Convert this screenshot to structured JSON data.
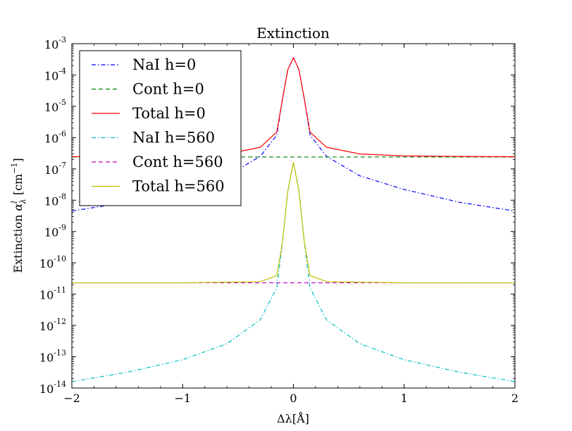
{
  "chart_data": {
    "type": "line",
    "title": "Extinction",
    "xlabel": "Δλ[Å]",
    "ylabel_main": "Extinction",
    "ylabel_symbol": "α",
    "ylabel_sup": "l",
    "ylabel_sub": "λ",
    "ylabel_unit": "[cm",
    "ylabel_unit_sup": "−1",
    "ylabel_unit_close": "]",
    "xlim": [
      -2,
      2
    ],
    "ylim_log10": [
      -14,
      -3
    ],
    "yscale": "log",
    "grid": false,
    "legend_position": "upper-left",
    "x_ticks": [
      {
        "value": -2,
        "label": "−2"
      },
      {
        "value": -1,
        "label": "−1"
      },
      {
        "value": 0,
        "label": "0"
      },
      {
        "value": 1,
        "label": "1"
      },
      {
        "value": 2,
        "label": "2"
      }
    ],
    "y_ticks": [
      {
        "exp": -3,
        "base": "10",
        "sup": "-3"
      },
      {
        "exp": -4,
        "base": "10",
        "sup": "-4"
      },
      {
        "exp": -5,
        "base": "10",
        "sup": "-5"
      },
      {
        "exp": -6,
        "base": "10",
        "sup": "-6"
      },
      {
        "exp": -7,
        "base": "10",
        "sup": "-7"
      },
      {
        "exp": -8,
        "base": "10",
        "sup": "-8"
      },
      {
        "exp": -9,
        "base": "10",
        "sup": "-9"
      },
      {
        "exp": -10,
        "base": "10",
        "sup": "-10"
      },
      {
        "exp": -11,
        "base": "10",
        "sup": "-11"
      },
      {
        "exp": -12,
        "base": "10",
        "sup": "-12"
      },
      {
        "exp": -13,
        "base": "10",
        "sup": "-13"
      },
      {
        "exp": -14,
        "base": "10",
        "sup": "-14"
      }
    ],
    "series": [
      {
        "name": "NaI h=0",
        "color": "#0000ff",
        "dash": "dashdot",
        "x": [
          -2,
          -1.5,
          -1.0,
          -0.6,
          -0.3,
          -0.15,
          -0.1,
          -0.05,
          0,
          0.05,
          0.1,
          0.15,
          0.3,
          0.6,
          1.0,
          1.5,
          2
        ],
        "y": [
          4.5e-09,
          8.6e-09,
          2.2e-08,
          6e-08,
          2.5e-07,
          1.2e-06,
          1.6e-05,
          0.00015,
          0.00036,
          0.00015,
          1.6e-05,
          1.2e-06,
          2.5e-07,
          6e-08,
          2.2e-08,
          8.6e-09,
          4.5e-09
        ]
      },
      {
        "name": "Cont h=0",
        "color": "#008000",
        "dash": "dashed",
        "x": [
          -2,
          2
        ],
        "y": [
          2.4e-07,
          2.4e-07
        ]
      },
      {
        "name": "Total h=0",
        "color": "#ff0000",
        "dash": "solid",
        "x": [
          -2,
          -1.5,
          -1.0,
          -0.6,
          -0.3,
          -0.15,
          -0.1,
          -0.05,
          0,
          0.05,
          0.1,
          0.15,
          0.3,
          0.6,
          1.0,
          1.5,
          2
        ],
        "y": [
          2.45e-07,
          2.5e-07,
          2.6e-07,
          3e-07,
          4.9e-07,
          1.5e-06,
          1.6e-05,
          0.00015,
          0.00036,
          0.00015,
          1.6e-05,
          1.5e-06,
          4.9e-07,
          3e-07,
          2.6e-07,
          2.5e-07,
          2.45e-07
        ]
      },
      {
        "name": "NaI h=560",
        "color": "#00bfbf",
        "dash": "dashdot",
        "x": [
          -2,
          -1.5,
          -1.0,
          -0.6,
          -0.3,
          -0.15,
          -0.1,
          -0.05,
          0,
          0.05,
          0.1,
          0.15,
          0.3,
          0.6,
          1.0,
          1.5,
          2
        ],
        "y": [
          1.6e-14,
          3.2e-14,
          8e-14,
          2.6e-13,
          1.5e-12,
          1.6e-11,
          4e-10,
          2e-08,
          1.6e-07,
          2e-08,
          4e-10,
          1.6e-11,
          1.5e-12,
          2.6e-13,
          8e-14,
          3.2e-14,
          1.6e-14
        ]
      },
      {
        "name": "Cont h=560",
        "color": "#bf00bf",
        "dash": "dashed",
        "x": [
          -2,
          2
        ],
        "y": [
          2.3e-11,
          2.3e-11
        ]
      },
      {
        "name": "Total h=560",
        "color": "#bfbf00",
        "dash": "solid",
        "x": [
          -2,
          -1.0,
          -0.3,
          -0.15,
          -0.1,
          -0.05,
          0,
          0.05,
          0.1,
          0.15,
          0.3,
          1.0,
          2
        ],
        "y": [
          2.3e-11,
          2.3e-11,
          2.5e-11,
          3.9e-11,
          4.2e-10,
          2e-08,
          1.6e-07,
          2e-08,
          4.2e-10,
          3.9e-11,
          2.5e-11,
          2.3e-11,
          2.3e-11
        ]
      }
    ]
  }
}
